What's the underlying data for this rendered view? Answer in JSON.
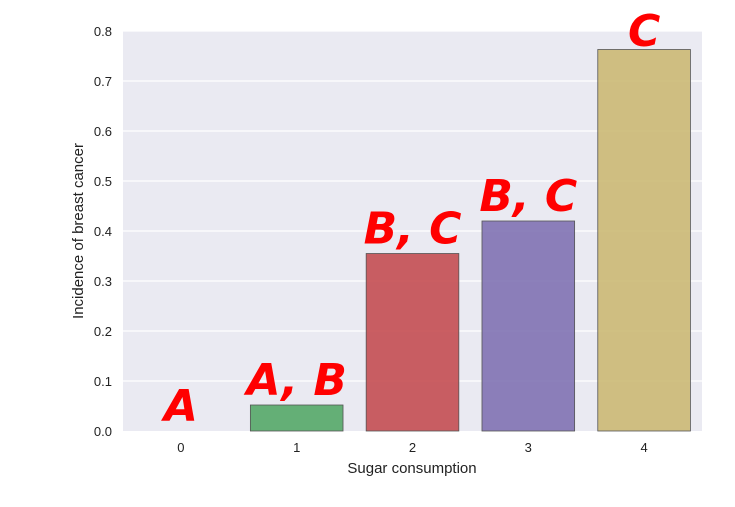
{
  "chart_data": {
    "type": "bar",
    "xlabel": "Sugar consumption",
    "ylabel": "Incidence of breast cancer",
    "categories": [
      "0",
      "1",
      "2",
      "3",
      "4"
    ],
    "values": [
      0.0,
      0.052,
      0.355,
      0.42,
      0.763
    ],
    "ylim": [
      0,
      0.8
    ],
    "yticks": [
      "0.0",
      "0.1",
      "0.2",
      "0.3",
      "0.4",
      "0.5",
      "0.6",
      "0.7",
      "0.8"
    ],
    "annotations": [
      "A",
      "A, B",
      "B, C",
      "B, C",
      "C"
    ],
    "grid": true,
    "legend": "none",
    "colors": {
      "background": "#eaeaf2",
      "grid": "#ffffff",
      "bars": [
        "#4c72b0",
        "#55a868",
        "#c44e52",
        "#8172b2",
        "#ccb974"
      ],
      "annotation": "#ff0000"
    }
  }
}
